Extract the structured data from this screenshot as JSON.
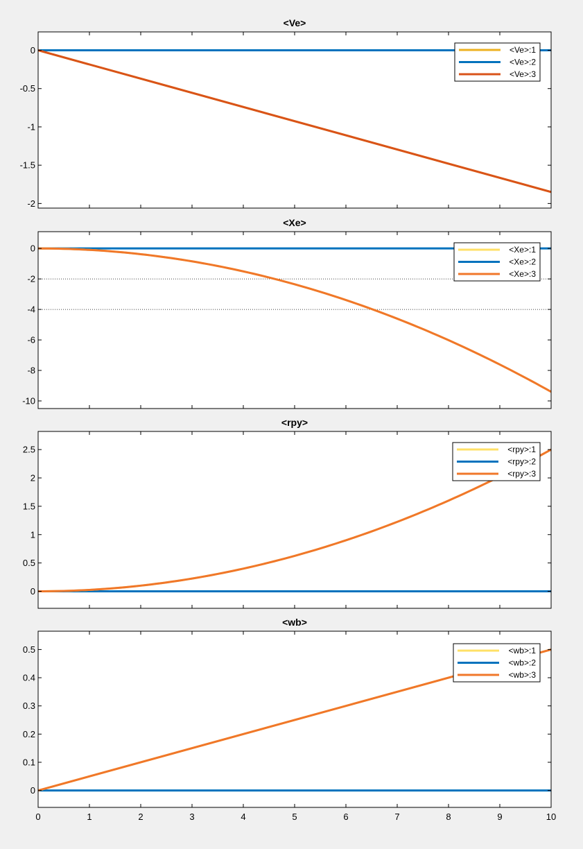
{
  "figure": {
    "background": "#f0f0f0"
  },
  "colors": {
    "series1": "#EDB120",
    "series1_light": "#FFE066",
    "series2": "#0072BD",
    "series3": "#D95319",
    "series3_light": "#F0772A",
    "axis": "#000000",
    "grid": "#000000",
    "plot_bg": "#FFFFFF"
  },
  "chart_data": [
    {
      "type": "line",
      "title": "<Ve>",
      "xlabel": "",
      "ylabel": "",
      "xlim": [
        0,
        10
      ],
      "ylim": [
        -2.06,
        0.24
      ],
      "yticks": [
        0,
        -0.5,
        -1,
        -1.5,
        -2
      ],
      "ytick_labels": [
        "0",
        "-0.5",
        "-1",
        "-1.5",
        "-2"
      ],
      "xticks": [
        0,
        1,
        2,
        3,
        4,
        5,
        6,
        7,
        8,
        9,
        10
      ],
      "xtick_labels": [],
      "legend_position": "top-right",
      "grid": false,
      "x": [
        0,
        10
      ],
      "series": [
        {
          "name": "<Ve>:1",
          "color": "#EDB120",
          "values": [
            0,
            -1.85
          ]
        },
        {
          "name": "<Ve>:2",
          "color": "#0072BD",
          "values": [
            0,
            0
          ]
        },
        {
          "name": "<Ve>:3",
          "color": "#D95319",
          "values": [
            0,
            -1.85
          ]
        }
      ]
    },
    {
      "type": "line",
      "title": "<Xe>",
      "xlabel": "",
      "ylabel": "",
      "xlim": [
        0,
        10
      ],
      "ylim": [
        -10.5,
        1.1
      ],
      "yticks": [
        0,
        -2,
        -4,
        -6,
        -8,
        -10
      ],
      "ytick_labels": [
        "0",
        "-2",
        "-4",
        "-6",
        "-8",
        "-10"
      ],
      "xticks": [
        0,
        1,
        2,
        3,
        4,
        5,
        6,
        7,
        8,
        9,
        10
      ],
      "xtick_labels": [],
      "legend_position": "top-right",
      "grid": false,
      "dotted_hlines": [
        -2,
        -4
      ],
      "x": [
        0,
        1,
        2,
        3,
        4,
        5,
        6,
        7,
        8,
        9,
        10
      ],
      "series": [
        {
          "name": "<Xe>:1",
          "color": "#FFE066",
          "values": [
            0,
            -0.094,
            -0.376,
            -0.846,
            -1.504,
            -2.35,
            -3.384,
            -4.606,
            -6.016,
            -7.614,
            -9.4
          ]
        },
        {
          "name": "<Xe>:2",
          "color": "#0072BD",
          "values": [
            0,
            0,
            0,
            0,
            0,
            0,
            0,
            0,
            0,
            0,
            0
          ]
        },
        {
          "name": "<Xe>:3",
          "color": "#F0772A",
          "values": [
            0,
            -0.094,
            -0.376,
            -0.846,
            -1.504,
            -2.35,
            -3.384,
            -4.606,
            -6.016,
            -7.614,
            -9.4
          ]
        }
      ]
    },
    {
      "type": "line",
      "title": "<rpy>",
      "xlabel": "",
      "ylabel": "",
      "xlim": [
        0,
        10
      ],
      "ylim": [
        -0.3,
        2.82
      ],
      "yticks": [
        2.5,
        2,
        1.5,
        1,
        0.5,
        0
      ],
      "ytick_labels": [
        "2.5",
        "2",
        "1.5",
        "1",
        "0.5",
        "0"
      ],
      "xticks": [
        0,
        1,
        2,
        3,
        4,
        5,
        6,
        7,
        8,
        9,
        10
      ],
      "xtick_labels": [],
      "legend_position": "top-right",
      "grid": false,
      "x": [
        0,
        1,
        2,
        3,
        4,
        5,
        6,
        7,
        8,
        9,
        10
      ],
      "series": [
        {
          "name": "<rpy>:1",
          "color": "#FFE066",
          "values": [
            0,
            0.025,
            0.1,
            0.225,
            0.4,
            0.625,
            0.9,
            1.225,
            1.6,
            2.025,
            2.5
          ]
        },
        {
          "name": "<rpy>:2",
          "color": "#0072BD",
          "values": [
            0,
            0,
            0,
            0,
            0,
            0,
            0,
            0,
            0,
            0,
            0
          ]
        },
        {
          "name": "<rpy>:3",
          "color": "#F0772A",
          "values": [
            0,
            0.025,
            0.1,
            0.225,
            0.4,
            0.625,
            0.9,
            1.225,
            1.6,
            2.025,
            2.5
          ]
        }
      ]
    },
    {
      "type": "line",
      "title": "<wb>",
      "xlabel": "",
      "ylabel": "",
      "xlim": [
        0,
        10
      ],
      "ylim": [
        -0.06,
        0.565
      ],
      "yticks": [
        0.5,
        0.4,
        0.3,
        0.2,
        0.1,
        0
      ],
      "ytick_labels": [
        "0.5",
        "0.4",
        "0.3",
        "0.2",
        "0.1",
        "0"
      ],
      "xticks": [
        0,
        1,
        2,
        3,
        4,
        5,
        6,
        7,
        8,
        9,
        10
      ],
      "xtick_labels": [
        "0",
        "1",
        "2",
        "3",
        "4",
        "5",
        "6",
        "7",
        "8",
        "9",
        "10"
      ],
      "legend_position": "top-right",
      "grid": false,
      "x": [
        0,
        10
      ],
      "series": [
        {
          "name": "<wb>:1",
          "color": "#FFE066",
          "values": [
            0,
            0.5
          ]
        },
        {
          "name": "<wb>:2",
          "color": "#0072BD",
          "values": [
            0,
            0
          ]
        },
        {
          "name": "<wb>:3",
          "color": "#F0772A",
          "values": [
            0,
            0.5
          ]
        }
      ]
    }
  ]
}
